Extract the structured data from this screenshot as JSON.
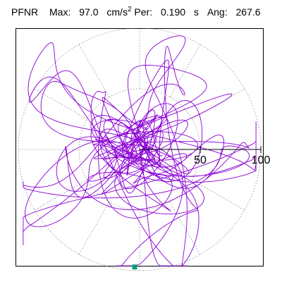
{
  "header": {
    "station": "PFNR",
    "max_label": "Max:",
    "max_value": "97.0",
    "max_unit": "cm/s",
    "max_unit_exp": "2",
    "per_label": "Per:",
    "per_value": "0.190",
    "per_unit": "s",
    "ang_label": "Ang:",
    "ang_value": "267.6"
  },
  "chart_data": {
    "type": "scatter",
    "title": "",
    "xlabel": "",
    "ylabel": "",
    "polar": true,
    "rlim": [
      0,
      100
    ],
    "radial_ticks": [
      50,
      100
    ],
    "radial_tick_labels": [
      "50",
      "100"
    ],
    "grid": true,
    "series": [
      {
        "name": "",
        "kind": "particle-motion",
        "color": "#8a00d4"
      }
    ],
    "max_point": {
      "value": 97.0,
      "angle_deg": 267.6,
      "marker_color": "#00a070"
    },
    "colors": {
      "trace": "#8a00d4",
      "grid": "#888888",
      "axis": "#000000",
      "marker": "#00a070"
    }
  }
}
